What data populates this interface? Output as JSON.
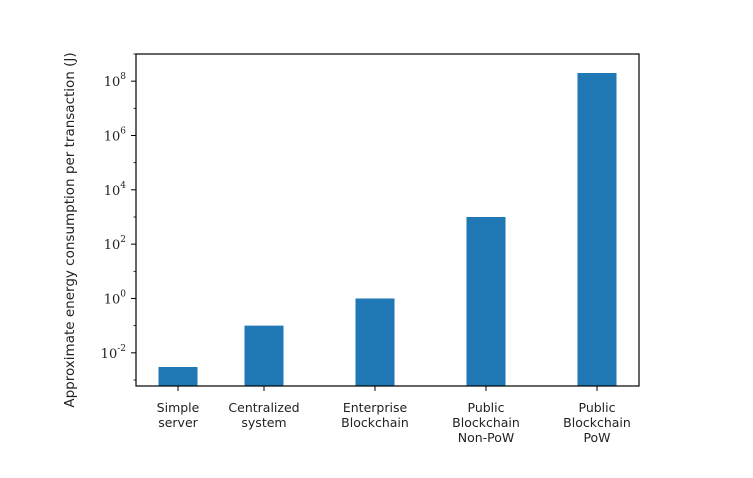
{
  "chart_data": {
    "type": "bar",
    "categories": [
      [
        "Simple",
        "server"
      ],
      [
        "Centralized",
        "system"
      ],
      [
        "Enterprise",
        "Blockchain"
      ],
      [
        "Public",
        "Blockchain",
        "Non-PoW"
      ],
      [
        "Public",
        "Blockchain",
        "PoW"
      ]
    ],
    "values": [
      0.003,
      0.1,
      1,
      1000,
      200000000
    ],
    "title": "",
    "xlabel": "",
    "ylabel": "Approximate energy consumption per transaction (J)",
    "yscale": "log",
    "ylim": [
      0.0006,
      1000000000
    ],
    "yticks": [
      {
        "base": "10",
        "exp": "-2",
        "value": 0.01
      },
      {
        "base": "10",
        "exp": "0",
        "value": 1
      },
      {
        "base": "10",
        "exp": "2",
        "value": 100
      },
      {
        "base": "10",
        "exp": "4",
        "value": 10000
      },
      {
        "base": "10",
        "exp": "6",
        "value": 1000000
      },
      {
        "base": "10",
        "exp": "8",
        "value": 100000000
      }
    ],
    "grid": false,
    "bar_color": "#1f77b4"
  }
}
